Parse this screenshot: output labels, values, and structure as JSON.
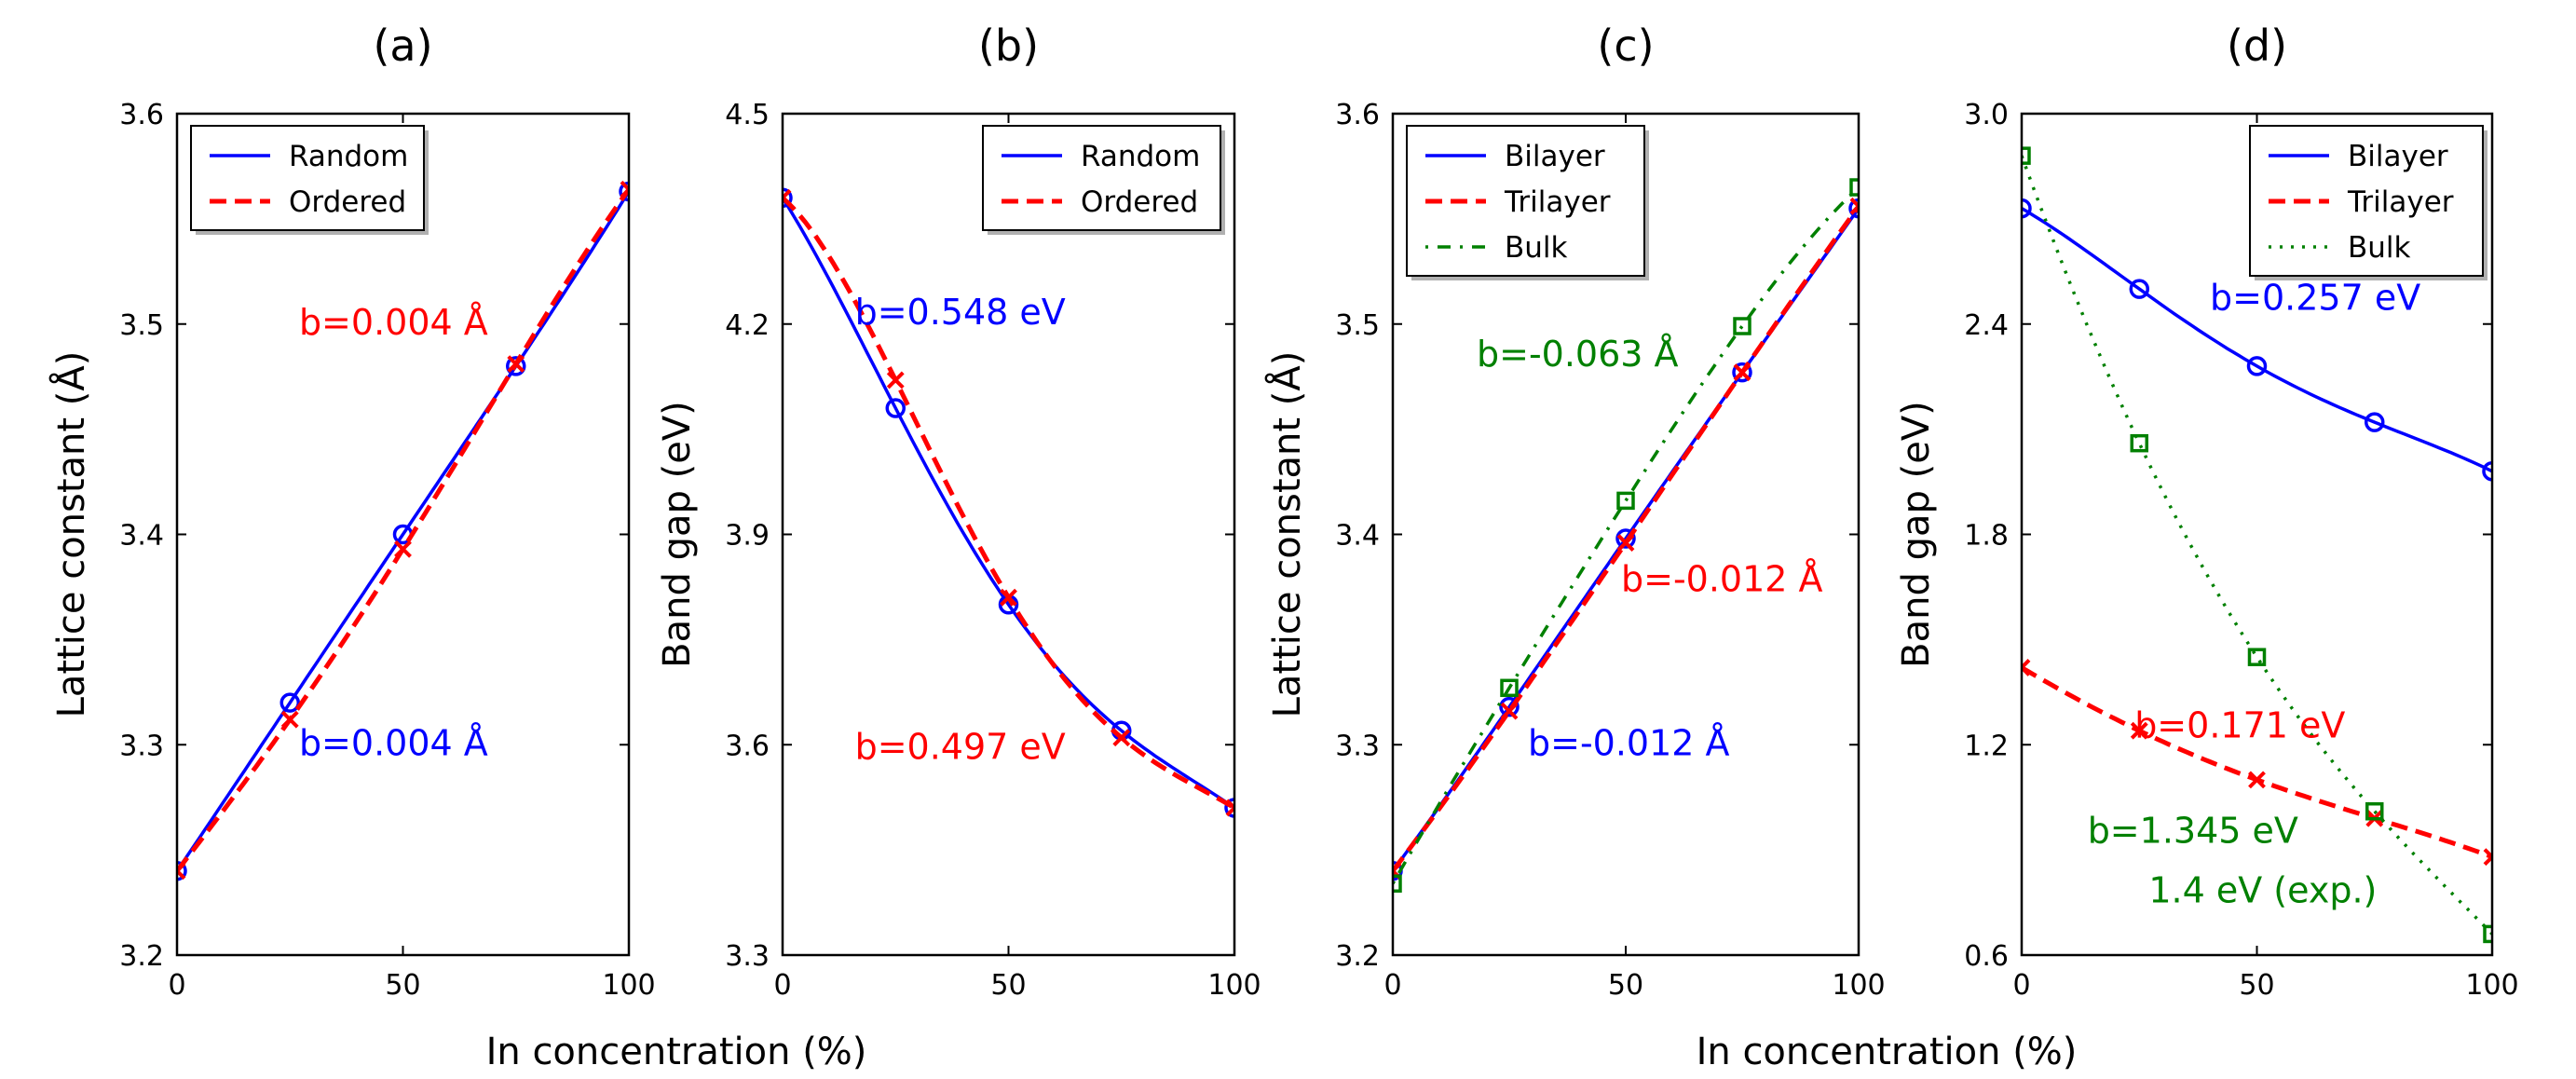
{
  "figure": {
    "xlabel_left": "In concentration (%)",
    "xlabel_right": "In concentration (%)"
  },
  "chart_data": [
    {
      "type": "line",
      "panel_label": "(a)",
      "xlabel": "",
      "ylabel": "Lattice constant (Å)",
      "xlim": [
        0,
        100
      ],
      "ylim": [
        3.2,
        3.6
      ],
      "xticks": [
        0,
        50,
        100
      ],
      "yticks": [
        3.2,
        3.3,
        3.4,
        3.5,
        3.6
      ],
      "xtick_labels": [
        "0",
        "50",
        "100"
      ],
      "ytick_labels": [
        "3.2",
        "3.3",
        "3.4",
        "3.5",
        "3.6"
      ],
      "legend_position": "top-left",
      "series": [
        {
          "name": "Random",
          "color": "#0000ff",
          "style": "solid",
          "marker": "circle",
          "x": [
            0,
            25,
            50,
            75,
            100
          ],
          "y": [
            3.24,
            3.32,
            3.4,
            3.48,
            3.563
          ],
          "bowing": 0.004
        },
        {
          "name": "Ordered",
          "color": "#ff0000",
          "style": "dashed",
          "marker": "x",
          "x": [
            0,
            25,
            50,
            75,
            100
          ],
          "y": [
            3.24,
            3.312,
            3.393,
            3.481,
            3.564
          ],
          "bowing": 0.004
        }
      ],
      "annotations": [
        {
          "text": "b=0.004 Å",
          "color": "#ff0000",
          "x": 27,
          "y": 3.495
        },
        {
          "text": "b=0.004 Å",
          "color": "#0000ff",
          "x": 27,
          "y": 3.295
        }
      ]
    },
    {
      "type": "line",
      "panel_label": "(b)",
      "xlabel": "",
      "ylabel": "Band gap (eV)",
      "xlim": [
        0,
        100
      ],
      "ylim": [
        3.3,
        4.5
      ],
      "xticks": [
        0,
        50,
        100
      ],
      "yticks": [
        3.3,
        3.6,
        3.9,
        4.2,
        4.5
      ],
      "xtick_labels": [
        "0",
        "50",
        "100"
      ],
      "ytick_labels": [
        "3.3",
        "3.6",
        "3.9",
        "4.2",
        "4.5"
      ],
      "legend_position": "top-right",
      "series": [
        {
          "name": "Random",
          "color": "#0000ff",
          "style": "solid",
          "marker": "circle",
          "x": [
            0,
            25,
            50,
            75,
            100
          ],
          "y": [
            4.38,
            4.08,
            3.8,
            3.62,
            3.51
          ],
          "bowing": 0.548
        },
        {
          "name": "Ordered",
          "color": "#ff0000",
          "style": "dashed",
          "marker": "x",
          "x": [
            0,
            25,
            50,
            75,
            100
          ],
          "y": [
            4.38,
            4.12,
            3.81,
            3.61,
            3.51
          ],
          "bowing": 0.497
        }
      ],
      "annotations": [
        {
          "text": "b=0.548 eV",
          "color": "#0000ff",
          "x": 16,
          "y": 4.2
        },
        {
          "text": "b=0.497 eV",
          "color": "#ff0000",
          "x": 16,
          "y": 3.58
        }
      ]
    },
    {
      "type": "line",
      "panel_label": "(c)",
      "xlabel": "",
      "ylabel": "Lattice constant (Å)",
      "xlim": [
        0,
        100
      ],
      "ylim": [
        3.2,
        3.6
      ],
      "xticks": [
        0,
        50,
        100
      ],
      "yticks": [
        3.2,
        3.3,
        3.4,
        3.5,
        3.6
      ],
      "xtick_labels": [
        "0",
        "50",
        "100"
      ],
      "ytick_labels": [
        "3.2",
        "3.3",
        "3.4",
        "3.5",
        "3.6"
      ],
      "legend_position": "top-left",
      "series": [
        {
          "name": "Bilayer",
          "color": "#0000ff",
          "style": "solid",
          "marker": "circle",
          "x": [
            0,
            25,
            50,
            75,
            100
          ],
          "y": [
            3.24,
            3.318,
            3.398,
            3.477,
            3.555
          ],
          "bowing": -0.012
        },
        {
          "name": "Trilayer",
          "color": "#ff0000",
          "style": "dashed",
          "marker": "x",
          "x": [
            0,
            25,
            50,
            75,
            100
          ],
          "y": [
            3.24,
            3.316,
            3.396,
            3.477,
            3.556
          ],
          "bowing": -0.012
        },
        {
          "name": "Bulk",
          "color": "#008000",
          "style": "dashdot",
          "marker": "square",
          "x": [
            0,
            25,
            50,
            75,
            100
          ],
          "y": [
            3.234,
            3.327,
            3.416,
            3.499,
            3.565
          ],
          "bowing": -0.063
        }
      ],
      "annotations": [
        {
          "text": "b=-0.063 Å",
          "color": "#008000",
          "x": 18,
          "y": 3.48
        },
        {
          "text": "b=-0.012 Å",
          "color": "#ff0000",
          "x": 49,
          "y": 3.373
        },
        {
          "text": "b=-0.012 Å",
          "color": "#0000ff",
          "x": 29,
          "y": 3.295
        }
      ]
    },
    {
      "type": "line",
      "panel_label": "(d)",
      "xlabel": "",
      "ylabel": "Band gap (eV)",
      "xlim": [
        0,
        100
      ],
      "ylim": [
        0.6,
        3.0
      ],
      "xticks": [
        0,
        50,
        100
      ],
      "yticks": [
        0.6,
        1.2,
        1.8,
        2.4,
        3.0
      ],
      "xtick_labels": [
        "0",
        "50",
        "100"
      ],
      "ytick_labels": [
        "0.6",
        "1.2",
        "1.8",
        "2.4",
        "3.0"
      ],
      "legend_position": "top-right",
      "series": [
        {
          "name": "Bilayer",
          "color": "#0000ff",
          "style": "solid",
          "marker": "circle",
          "x": [
            0,
            25,
            50,
            75,
            100
          ],
          "y": [
            2.73,
            2.5,
            2.28,
            2.12,
            1.98
          ],
          "bowing": 0.257
        },
        {
          "name": "Trilayer",
          "color": "#ff0000",
          "style": "dashed",
          "marker": "x",
          "x": [
            0,
            25,
            50,
            75,
            100
          ],
          "y": [
            1.42,
            1.24,
            1.1,
            0.99,
            0.88
          ],
          "bowing": 0.171
        },
        {
          "name": "Bulk",
          "color": "#008000",
          "style": "dotted",
          "marker": "square",
          "x": [
            0,
            25,
            50,
            75,
            100
          ],
          "y": [
            2.88,
            2.06,
            1.45,
            1.01,
            0.66
          ],
          "bowing": 1.345
        }
      ],
      "annotations": [
        {
          "text": "b=0.257 eV",
          "color": "#0000ff",
          "x": 40,
          "y": 2.44
        },
        {
          "text": "b=0.171 eV",
          "color": "#ff0000",
          "x": 24,
          "y": 1.22
        },
        {
          "text": "b=1.345 eV",
          "color": "#008000",
          "x": 14,
          "y": 0.92
        },
        {
          "text": "1.4 eV (exp.)",
          "color": "#008000",
          "x": 27,
          "y": 0.75
        }
      ]
    }
  ]
}
